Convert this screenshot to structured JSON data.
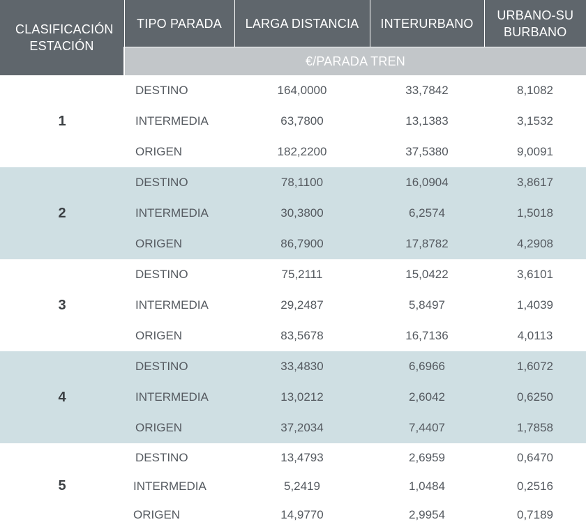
{
  "header": {
    "clasificacion": "CLASIFICACIÓN ESTACIÓN",
    "tipo": "TIPO PARADA",
    "larga": "LARGA DISTANCIA",
    "inter": "INTERURBANO",
    "urbano": "URBANO-SUBURBANO",
    "unit": "€/PARADA TREN"
  },
  "groups": [
    {
      "label": "1",
      "rows": [
        {
          "tipo": "DESTINO",
          "larga": "164,0000",
          "inter": "33,7842",
          "urbano": "8,1082"
        },
        {
          "tipo": "INTERMEDIA",
          "larga": "63,7800",
          "inter": "13,1383",
          "urbano": "3,1532"
        },
        {
          "tipo": "ORIGEN",
          "larga": "182,2200",
          "inter": "37,5380",
          "urbano": "9,0091"
        }
      ]
    },
    {
      "label": "2",
      "rows": [
        {
          "tipo": "DESTINO",
          "larga": "78,1100",
          "inter": "16,0904",
          "urbano": "3,8617"
        },
        {
          "tipo": "INTERMEDIA",
          "larga": "30,3800",
          "inter": "6,2574",
          "urbano": "1,5018"
        },
        {
          "tipo": "ORIGEN",
          "larga": "86,7900",
          "inter": "17,8782",
          "urbano": "4,2908"
        }
      ]
    },
    {
      "label": "3",
      "rows": [
        {
          "tipo": "DESTINO",
          "larga": "75,2111",
          "inter": "15,0422",
          "urbano": "3,6101"
        },
        {
          "tipo": "INTERMEDIA",
          "larga": "29,2487",
          "inter": "5,8497",
          "urbano": "1,4039"
        },
        {
          "tipo": "ORIGEN",
          "larga": "83,5678",
          "inter": "16,7136",
          "urbano": "4,0113"
        }
      ]
    },
    {
      "label": "4",
      "rows": [
        {
          "tipo": "DESTINO",
          "larga": "33,4830",
          "inter": "6,6966",
          "urbano": "1,6072"
        },
        {
          "tipo": "INTERMEDIA",
          "larga": "13,0212",
          "inter": "2,6042",
          "urbano": "0,6250"
        },
        {
          "tipo": "ORIGEN",
          "larga": "37,2034",
          "inter": "7,4407",
          "urbano": "1,7858"
        }
      ]
    },
    {
      "label": "5",
      "rows": [
        {
          "tipo": "DESTINO",
          "larga": "13,4793",
          "inter": "2,6959",
          "urbano": "0,6470"
        },
        {
          "tipo": "INTERMEDIA",
          "larga": "5,2419",
          "inter": "1,0484",
          "urbano": "0,2516"
        },
        {
          "tipo": "ORIGEN",
          "larga": "14,9770",
          "inter": "2,9954",
          "urbano": "0,7189"
        }
      ]
    }
  ]
}
